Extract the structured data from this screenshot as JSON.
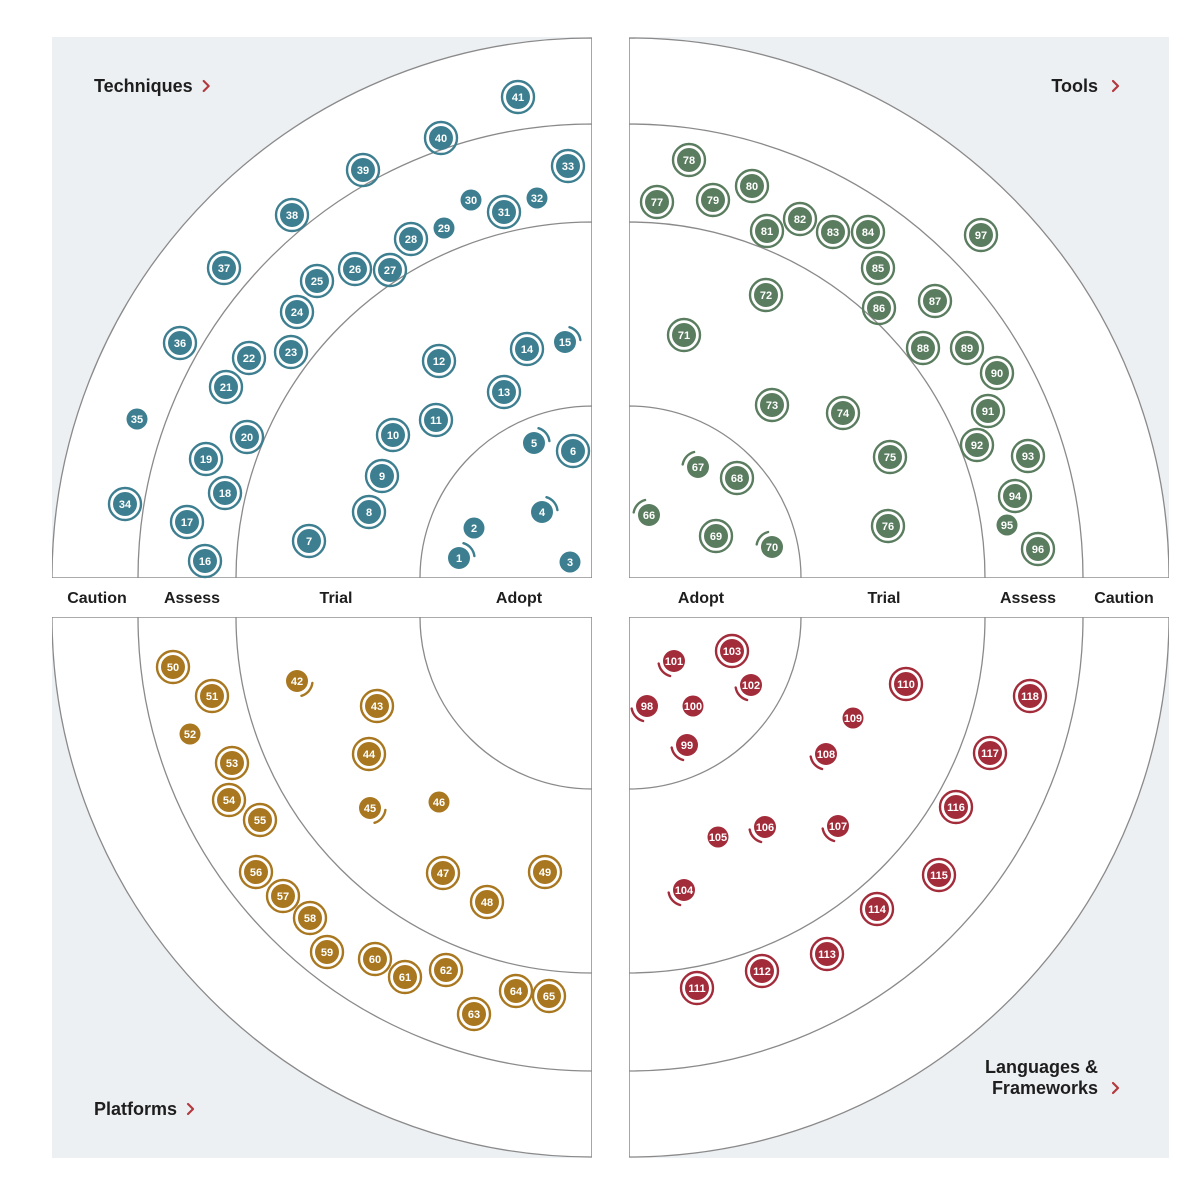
{
  "rings": [
    "Adopt",
    "Trial",
    "Assess",
    "Caution"
  ],
  "colors": {
    "background": "#edf0f3",
    "arc_stroke": "#8a8a8a",
    "chevron": "#b3393f",
    "techniques": "#3d7f90",
    "tools": "#5a7c5f",
    "platforms": "#a8771f",
    "languages": "#a32c3b"
  },
  "quadrants": [
    {
      "id": "techniques",
      "title_lines": [
        "Techniques"
      ],
      "blips": [
        {
          "n": 1,
          "t": "moved-in"
        },
        {
          "n": 2,
          "t": "none"
        },
        {
          "n": 3,
          "t": "none"
        },
        {
          "n": 4,
          "t": "moved-in"
        },
        {
          "n": 5,
          "t": "moved-in"
        },
        {
          "n": 6,
          "t": "new"
        },
        {
          "n": 7,
          "t": "new"
        },
        {
          "n": 8,
          "t": "new"
        },
        {
          "n": 9,
          "t": "new"
        },
        {
          "n": 10,
          "t": "new"
        },
        {
          "n": 11,
          "t": "new"
        },
        {
          "n": 12,
          "t": "new"
        },
        {
          "n": 13,
          "t": "new"
        },
        {
          "n": 14,
          "t": "new"
        },
        {
          "n": 15,
          "t": "moved-in"
        },
        {
          "n": 16,
          "t": "new"
        },
        {
          "n": 17,
          "t": "new"
        },
        {
          "n": 18,
          "t": "new"
        },
        {
          "n": 19,
          "t": "new"
        },
        {
          "n": 20,
          "t": "new"
        },
        {
          "n": 21,
          "t": "new"
        },
        {
          "n": 22,
          "t": "new"
        },
        {
          "n": 23,
          "t": "new"
        },
        {
          "n": 24,
          "t": "new"
        },
        {
          "n": 25,
          "t": "new"
        },
        {
          "n": 26,
          "t": "new"
        },
        {
          "n": 27,
          "t": "new"
        },
        {
          "n": 28,
          "t": "new"
        },
        {
          "n": 29,
          "t": "none"
        },
        {
          "n": 30,
          "t": "none"
        },
        {
          "n": 31,
          "t": "new"
        },
        {
          "n": 32,
          "t": "none"
        },
        {
          "n": 33,
          "t": "new"
        },
        {
          "n": 34,
          "t": "new"
        },
        {
          "n": 35,
          "t": "none"
        },
        {
          "n": 36,
          "t": "new"
        },
        {
          "n": 37,
          "t": "new"
        },
        {
          "n": 38,
          "t": "new"
        },
        {
          "n": 39,
          "t": "new"
        },
        {
          "n": 40,
          "t": "new"
        },
        {
          "n": 41,
          "t": "new"
        }
      ]
    },
    {
      "id": "tools",
      "title_lines": [
        "Tools"
      ],
      "blips": [
        {
          "n": 66,
          "t": "moved-in"
        },
        {
          "n": 67,
          "t": "moved-in"
        },
        {
          "n": 68,
          "t": "new"
        },
        {
          "n": 69,
          "t": "new"
        },
        {
          "n": 70,
          "t": "moved-in"
        },
        {
          "n": 71,
          "t": "new"
        },
        {
          "n": 72,
          "t": "new"
        },
        {
          "n": 73,
          "t": "new"
        },
        {
          "n": 74,
          "t": "new"
        },
        {
          "n": 75,
          "t": "new"
        },
        {
          "n": 76,
          "t": "new"
        },
        {
          "n": 77,
          "t": "new"
        },
        {
          "n": 78,
          "t": "new"
        },
        {
          "n": 79,
          "t": "new"
        },
        {
          "n": 80,
          "t": "new"
        },
        {
          "n": 81,
          "t": "new"
        },
        {
          "n": 82,
          "t": "new"
        },
        {
          "n": 83,
          "t": "new"
        },
        {
          "n": 84,
          "t": "new"
        },
        {
          "n": 85,
          "t": "new"
        },
        {
          "n": 86,
          "t": "new"
        },
        {
          "n": 87,
          "t": "new"
        },
        {
          "n": 88,
          "t": "new"
        },
        {
          "n": 89,
          "t": "new"
        },
        {
          "n": 90,
          "t": "new"
        },
        {
          "n": 91,
          "t": "new"
        },
        {
          "n": 92,
          "t": "new"
        },
        {
          "n": 93,
          "t": "new"
        },
        {
          "n": 94,
          "t": "new"
        },
        {
          "n": 95,
          "t": "none"
        },
        {
          "n": 96,
          "t": "new"
        },
        {
          "n": 97,
          "t": "new"
        }
      ]
    },
    {
      "id": "platforms",
      "title_lines": [
        "Platforms"
      ],
      "blips": [
        {
          "n": 42,
          "t": "moved-in"
        },
        {
          "n": 43,
          "t": "new"
        },
        {
          "n": 44,
          "t": "new"
        },
        {
          "n": 45,
          "t": "moved-in"
        },
        {
          "n": 46,
          "t": "none"
        },
        {
          "n": 47,
          "t": "new"
        },
        {
          "n": 48,
          "t": "new"
        },
        {
          "n": 49,
          "t": "new"
        },
        {
          "n": 50,
          "t": "new"
        },
        {
          "n": 51,
          "t": "new"
        },
        {
          "n": 52,
          "t": "none"
        },
        {
          "n": 53,
          "t": "new"
        },
        {
          "n": 54,
          "t": "new"
        },
        {
          "n": 55,
          "t": "new"
        },
        {
          "n": 56,
          "t": "new"
        },
        {
          "n": 57,
          "t": "new"
        },
        {
          "n": 58,
          "t": "new"
        },
        {
          "n": 59,
          "t": "new"
        },
        {
          "n": 60,
          "t": "new"
        },
        {
          "n": 61,
          "t": "new"
        },
        {
          "n": 62,
          "t": "new"
        },
        {
          "n": 63,
          "t": "new"
        },
        {
          "n": 64,
          "t": "new"
        },
        {
          "n": 65,
          "t": "new"
        }
      ]
    },
    {
      "id": "languages",
      "title_lines": [
        "Languages &",
        "Frameworks"
      ],
      "blips": [
        {
          "n": 98,
          "t": "moved-in"
        },
        {
          "n": 99,
          "t": "moved-in"
        },
        {
          "n": 100,
          "t": "none"
        },
        {
          "n": 101,
          "t": "moved-in"
        },
        {
          "n": 102,
          "t": "moved-in"
        },
        {
          "n": 103,
          "t": "new"
        },
        {
          "n": 104,
          "t": "moved-in"
        },
        {
          "n": 105,
          "t": "none"
        },
        {
          "n": 106,
          "t": "moved-in"
        },
        {
          "n": 107,
          "t": "moved-in"
        },
        {
          "n": 108,
          "t": "moved-in"
        },
        {
          "n": 109,
          "t": "none"
        },
        {
          "n": 110,
          "t": "new"
        },
        {
          "n": 111,
          "t": "new"
        },
        {
          "n": 112,
          "t": "new"
        },
        {
          "n": 113,
          "t": "new"
        },
        {
          "n": 114,
          "t": "new"
        },
        {
          "n": 115,
          "t": "new"
        },
        {
          "n": 116,
          "t": "new"
        },
        {
          "n": 117,
          "t": "new"
        },
        {
          "n": 118,
          "t": "new"
        }
      ]
    }
  ]
}
